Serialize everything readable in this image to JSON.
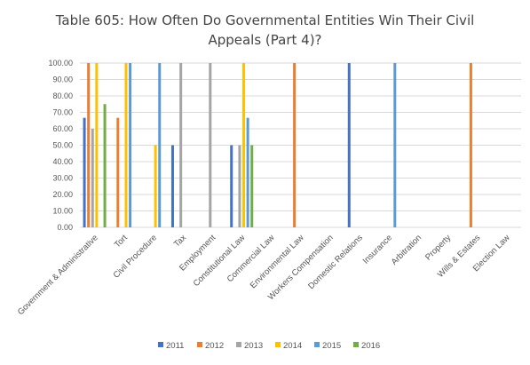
{
  "chart_data": {
    "type": "bar",
    "title_line1": "Table 605: How Often Do Governmental Entities Win Their Civil",
    "title_line2": "Appeals (Part 4)?",
    "categories": [
      "Government & Administrative",
      "Tort",
      "Civil Procedure",
      "Tax",
      "Employment",
      "Constitutional Law",
      "Commercial Law",
      "Environmental Law",
      "Workers Compensation",
      "Domestic Relations",
      "Insurance",
      "Arbitration",
      "Property",
      "Wills & Estates",
      "Election Law"
    ],
    "y_ticks": [
      "0.00",
      "10.00",
      "20.00",
      "30.00",
      "40.00",
      "50.00",
      "60.00",
      "70.00",
      "80.00",
      "90.00",
      "100.00"
    ],
    "ylim": [
      0,
      100
    ],
    "grid": true,
    "legend_position": "bottom",
    "series": [
      {
        "name": "2011",
        "color": "#4472C4",
        "values": [
          66.67,
          0,
          0,
          50,
          0,
          50,
          0,
          0,
          0,
          100,
          0,
          0,
          0,
          0,
          0
        ]
      },
      {
        "name": "2012",
        "color": "#ED7D31",
        "values": [
          100,
          66.67,
          0,
          0,
          0,
          0,
          0,
          100,
          0,
          0,
          0,
          0,
          0,
          100,
          0
        ]
      },
      {
        "name": "2013",
        "color": "#A5A5A5",
        "values": [
          60,
          0,
          0,
          100,
          100,
          50,
          0,
          0,
          0,
          0,
          0,
          0,
          0,
          0,
          0
        ]
      },
      {
        "name": "2014",
        "color": "#FFC000",
        "values": [
          100,
          100,
          50,
          0,
          0,
          100,
          0,
          0,
          0,
          0,
          0,
          0,
          0,
          0,
          0
        ]
      },
      {
        "name": "2015",
        "color": "#5B9BD5",
        "values": [
          0,
          100,
          100,
          0,
          0,
          66.67,
          0,
          0,
          0,
          0,
          100,
          0,
          0,
          0,
          0
        ]
      },
      {
        "name": "2016",
        "color": "#70AD47",
        "values": [
          75,
          0,
          0,
          0,
          0,
          50,
          0,
          0,
          0,
          0,
          0,
          0,
          0,
          0,
          0
        ]
      }
    ]
  }
}
